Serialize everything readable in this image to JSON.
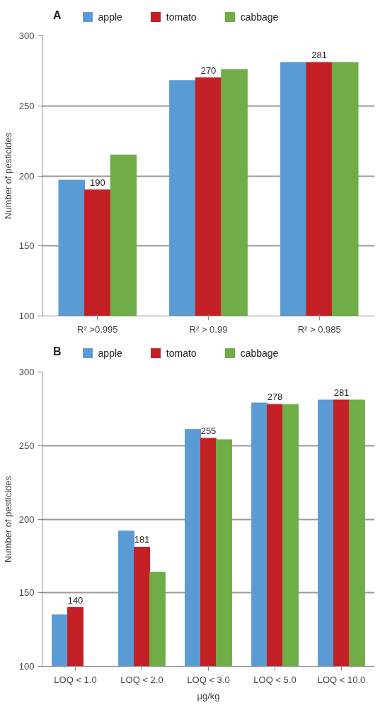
{
  "chart_data": [
    {
      "type": "bar",
      "title": "A",
      "ylabel": "Number of pesticides",
      "categories": [
        "R² >0.995",
        "R² > 0.99",
        "R² > 0.985"
      ],
      "ylim": [
        100,
        300
      ],
      "yticks": [
        100,
        150,
        200,
        250,
        300
      ],
      "grid": "y",
      "legend": "top",
      "series": [
        {
          "name": "apple",
          "color": "#5b9bd5",
          "values": [
            197,
            268,
            281
          ]
        },
        {
          "name": "tomato",
          "color": "#c32026",
          "values": [
            190,
            270,
            281
          ],
          "value_labels": [
            "190",
            "270",
            "281"
          ]
        },
        {
          "name": "cabbage",
          "color": "#70ad47",
          "values": [
            215,
            276,
            281
          ]
        }
      ]
    },
    {
      "type": "bar",
      "title": "B",
      "ylabel": "Number of pesticides",
      "xlabel": "μg/kg",
      "categories": [
        "LOQ < 1.0",
        "LOQ < 2.0",
        "LOQ < 3.0",
        "LOQ < 5.0",
        "LOQ < 10.0"
      ],
      "ylim": [
        100,
        300
      ],
      "yticks": [
        100,
        150,
        200,
        250,
        300
      ],
      "grid": "y",
      "legend": "top",
      "series": [
        {
          "name": "apple",
          "color": "#5b9bd5",
          "values": [
            135,
            192,
            261,
            279,
            281
          ]
        },
        {
          "name": "tomato",
          "color": "#c32026",
          "values": [
            140,
            181,
            255,
            278,
            281
          ],
          "value_labels": [
            "140",
            "181",
            "255",
            "278",
            "281"
          ]
        },
        {
          "name": "cabbage",
          "color": "#70ad47",
          "values": [
            100,
            164,
            254,
            278,
            281
          ]
        }
      ]
    }
  ]
}
